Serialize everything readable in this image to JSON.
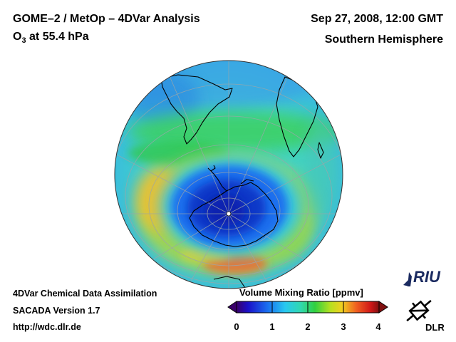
{
  "header": {
    "title": "GOME–2 / MetOp – 4DVar Analysis",
    "subtitle_prefix": "O",
    "subtitle_sub": "3",
    "subtitle_suffix": " at 55.4 hPa",
    "datetime": "Sep 27, 2008, 12:00 GMT",
    "region": "Southern Hemisphere"
  },
  "footer": {
    "line1": "4DVar Chemical Data Assimilation",
    "line2": "SACADA Version 1.7",
    "url": "http://wdc.dlr.de"
  },
  "colorbar": {
    "label": "Volume Mixing Ratio [ppmv]",
    "ticks": [
      "0",
      "1",
      "2",
      "3",
      "4"
    ]
  },
  "logos": {
    "riu": "RIU",
    "dlr": "DLR"
  },
  "colors": {
    "ozone_hole_core": "#1030c0",
    "ozone_low": "#1a7af0",
    "ozone_mid": "#2cc8e8",
    "ozone_green": "#30d070",
    "ozone_yellow": "#f0d028",
    "ozone_high": "#f06a28"
  }
}
